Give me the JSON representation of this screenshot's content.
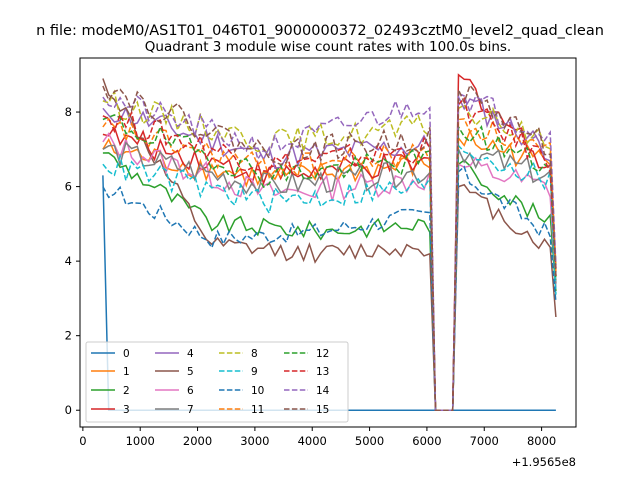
{
  "figure_suptitle": "n file: modeM0/AS1T01_046T01_9000000372_02493cztM0_level2_quad_clean",
  "chart_data": {
    "type": "line",
    "title": "Quadrant 3 module wise count rates with 100.0s bins.",
    "xlabel": "",
    "ylabel": "",
    "x_offset_label": "+1.9565e8",
    "xlim": [
      -50,
      8600
    ],
    "ylim": [
      -0.45,
      9.45
    ],
    "x_ticks": [
      0,
      1000,
      2000,
      3000,
      4000,
      5000,
      6000,
      7000,
      8000
    ],
    "y_ticks": [
      0,
      2,
      4,
      6,
      8
    ],
    "legend_position": "lower-left",
    "bins": {
      "segment1_start": 350,
      "segment1_end": 6050,
      "gap_points": [
        6150,
        6250,
        6350,
        6450
      ],
      "segment2_start": 6550,
      "segment2_end": 8250,
      "step": 100
    },
    "series": [
      {
        "name": "0",
        "color": "#1f77b4",
        "dash": "solid",
        "seg1": [
          6.3,
          0
        ],
        "seg2": [
          0,
          0
        ],
        "noise": 0,
        "end": 0
      },
      {
        "name": "1",
        "color": "#ff7f0e",
        "dash": "solid",
        "seg1": [
          7.0,
          6.2,
          6.6
        ],
        "seg2": [
          7.3,
          6.6
        ],
        "noise": 0.35,
        "end": 3.6
      },
      {
        "name": "2",
        "color": "#2ca02c",
        "dash": "solid",
        "seg1": [
          6.9,
          5.0,
          4.8,
          5.0
        ],
        "seg2": [
          6.6,
          4.9
        ],
        "noise": 0.25,
        "end": 3.2
      },
      {
        "name": "3",
        "color": "#d62728",
        "dash": "solid",
        "seg1": [
          7.4,
          6.3,
          6.6
        ],
        "seg2": [
          9.0,
          6.4
        ],
        "noise": 0.35,
        "end": 3.6
      },
      {
        "name": "4",
        "color": "#9467bd",
        "dash": "solid",
        "seg1": [
          8.1,
          6.8,
          7.1
        ],
        "seg2": [
          8.4,
          6.9
        ],
        "noise": 0.35,
        "end": 3.8
      },
      {
        "name": "5",
        "color": "#8c564b",
        "dash": "solid",
        "seg1": [
          8.9,
          4.4,
          4.2,
          4.4
        ],
        "seg2": [
          6.0,
          4.2
        ],
        "noise": 0.25,
        "end": 2.5
      },
      {
        "name": "6",
        "color": "#e377c2",
        "dash": "solid",
        "seg1": [
          7.2,
          5.8,
          6.2
        ],
        "seg2": [
          6.6,
          5.9
        ],
        "noise": 0.35,
        "end": 3.3
      },
      {
        "name": "7",
        "color": "#7f7f7f",
        "dash": "solid",
        "seg1": [
          7.0,
          6.0,
          6.4
        ],
        "seg2": [
          7.0,
          6.2
        ],
        "noise": 0.35,
        "end": 3.4
      },
      {
        "name": "8",
        "color": "#bcbd22",
        "dash": "dashed",
        "seg1": [
          8.3,
          7.2,
          7.6
        ],
        "seg2": [
          8.1,
          7.1
        ],
        "noise": 0.35,
        "end": 3.9
      },
      {
        "name": "9",
        "color": "#17becf",
        "dash": "dashed",
        "seg1": [
          6.6,
          5.6,
          6.0
        ],
        "seg2": [
          7.1,
          6.1
        ],
        "noise": 0.35,
        "end": 3.1
      },
      {
        "name": "10",
        "color": "#1f77b4",
        "dash": "dashed",
        "seg1": [
          6.0,
          4.6,
          4.8,
          5.3
        ],
        "seg2": [
          6.4,
          4.6
        ],
        "noise": 0.25,
        "end": 2.9
      },
      {
        "name": "11",
        "color": "#ff7f0e",
        "dash": "dashed",
        "seg1": [
          7.6,
          6.5,
          6.9
        ],
        "seg2": [
          7.8,
          6.8
        ],
        "noise": 0.35,
        "end": 3.7
      },
      {
        "name": "12",
        "color": "#2ca02c",
        "dash": "dashed",
        "seg1": [
          7.8,
          6.3,
          6.7
        ],
        "seg2": [
          7.6,
          6.4
        ],
        "noise": 0.35,
        "end": 3.5
      },
      {
        "name": "13",
        "color": "#d62728",
        "dash": "dashed",
        "seg1": [
          7.9,
          6.6,
          7.0
        ],
        "seg2": [
          8.2,
          6.6
        ],
        "noise": 0.35,
        "end": 3.8
      },
      {
        "name": "14",
        "color": "#9467bd",
        "dash": "dashed",
        "seg1": [
          8.4,
          7.0,
          8.3
        ],
        "seg2": [
          8.5,
          7.3
        ],
        "noise": 0.35,
        "end": 3.9
      },
      {
        "name": "15",
        "color": "#8c564b",
        "dash": "dashed",
        "seg1": [
          8.7,
          6.9,
          7.3
        ],
        "seg2": [
          8.6,
          7.0
        ],
        "noise": 0.35,
        "end": 3.6
      }
    ]
  }
}
